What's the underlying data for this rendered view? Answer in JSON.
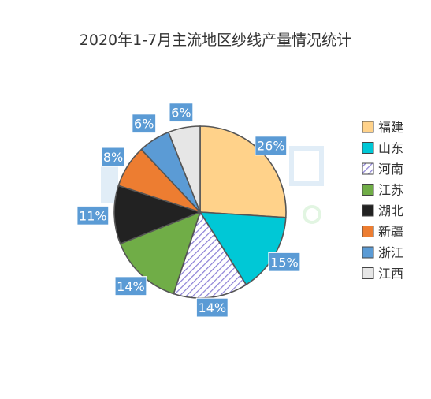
{
  "chart_data": {
    "type": "pie",
    "title": "2020年1-7月主流地区纱线产量情况统计",
    "categories": [
      "福建",
      "山东",
      "河南",
      "江苏",
      "湖北",
      "新疆",
      "浙江",
      "江西"
    ],
    "values": [
      26,
      15,
      14,
      14,
      11,
      8,
      6,
      6
    ],
    "labels": [
      "26%",
      "15%",
      "14%",
      "14%",
      "11%",
      "8%",
      "6%",
      "6%"
    ],
    "colors": [
      "#ffd28a",
      "#00c8d6",
      "hatch",
      "#70ad47",
      "#222222",
      "#ed7d31",
      "#5b9bd5",
      "#e6e6e6"
    ],
    "legend_position": "right",
    "data_labels": "percent, boxed"
  }
}
